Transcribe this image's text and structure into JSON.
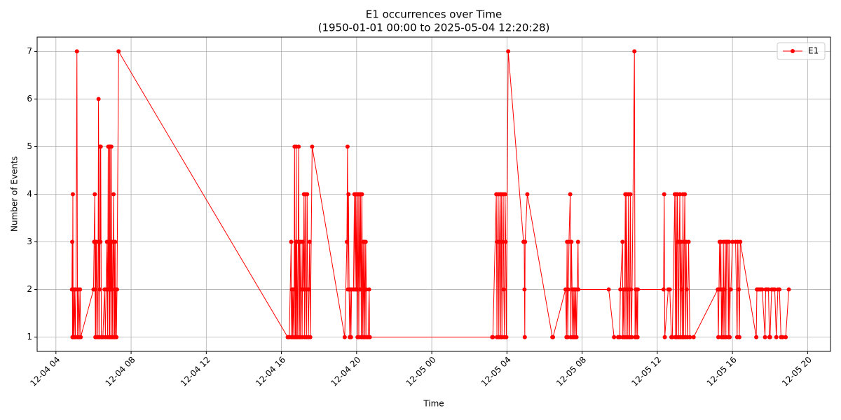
{
  "chart_data": {
    "type": "line",
    "title": "E1 occurrences over Time",
    "subtitle": "(1950-01-01 00:00 to 2025-05-04 12:20:28)",
    "x_label": "Time",
    "y_label": "Number of Events",
    "x": [
      "12-04 04:51",
      "12-04 04:52",
      "12-04 04:53",
      "12-04 04:54",
      "12-04 04:55",
      "12-04 04:56",
      "12-04 04:58",
      "12-04 05:00",
      "12-04 05:02",
      "12-04 05:04",
      "12-04 05:07",
      "12-04 05:09",
      "12-04 05:12",
      "12-04 05:14",
      "12-04 05:17",
      "12-04 05:19",
      "12-04 06:00",
      "12-04 06:02",
      "12-04 06:04",
      "12-04 06:05",
      "12-04 06:06",
      "12-04 06:07",
      "12-04 06:08",
      "12-04 06:09",
      "12-04 06:14",
      "12-04 06:16",
      "12-04 06:17",
      "12-04 06:18",
      "12-04 06:19",
      "12-04 06:20",
      "12-04 06:21",
      "12-04 06:22",
      "12-04 06:23",
      "12-04 06:25",
      "12-04 06:30",
      "12-04 06:35",
      "12-04 06:38",
      "12-04 06:40",
      "12-04 06:43",
      "12-04 06:45",
      "12-04 06:47",
      "12-04 06:48",
      "12-04 06:49",
      "12-04 06:50",
      "12-04 06:51",
      "12-04 06:52",
      "12-04 06:53",
      "12-04 06:54",
      "12-04 06:55",
      "12-04 06:56",
      "12-04 06:57",
      "12-04 06:58",
      "12-04 06:59",
      "12-04 07:00",
      "12-04 07:04",
      "12-04 07:05",
      "12-04 07:06",
      "12-04 07:07",
      "12-04 07:08",
      "12-04 07:09",
      "12-04 07:10",
      "12-04 07:12",
      "12-04 07:13",
      "12-04 07:15",
      "12-04 07:20",
      "12-04 16:20",
      "12-04 16:22",
      "12-04 16:25",
      "12-04 16:31",
      "12-04 16:32",
      "12-04 16:34",
      "12-04 16:36",
      "12-04 16:37",
      "12-04 16:40",
      "12-04 16:42",
      "12-04 16:43",
      "12-04 16:44",
      "12-04 16:45",
      "12-04 16:46",
      "12-04 16:47",
      "12-04 16:48",
      "12-04 16:49",
      "12-04 16:52",
      "12-04 16:55",
      "12-04 16:57",
      "12-04 16:58",
      "12-04 17:00",
      "12-04 17:02",
      "12-04 17:04",
      "12-04 17:06",
      "12-04 17:08",
      "12-04 17:10",
      "12-04 17:12",
      "12-04 17:14",
      "12-04 17:16",
      "12-04 17:18",
      "12-04 17:20",
      "12-04 17:22",
      "12-04 17:24",
      "12-04 17:26",
      "12-04 17:28",
      "12-04 17:30",
      "12-04 17:32",
      "12-04 17:38",
      "12-04 19:22",
      "12-04 19:29",
      "12-04 19:31",
      "12-04 19:32",
      "12-04 19:34",
      "12-04 19:36",
      "12-04 19:38",
      "12-04 19:40",
      "12-04 19:42",
      "12-04 19:44",
      "12-04 19:50",
      "12-04 19:53",
      "12-04 19:55",
      "12-04 19:57",
      "12-04 19:59",
      "12-04 20:01",
      "12-04 20:03",
      "12-04 20:05",
      "12-04 20:07",
      "12-04 20:09",
      "12-04 20:11",
      "12-04 20:13",
      "12-04 20:15",
      "12-04 20:17",
      "12-04 20:19",
      "12-04 20:21",
      "12-04 20:23",
      "12-04 20:25",
      "12-04 20:27",
      "12-04 20:29",
      "12-04 20:31",
      "12-04 20:33",
      "12-04 20:37",
      "12-04 20:40",
      "12-04 20:42",
      "12-05 03:13",
      "12-05 03:15",
      "12-05 03:26",
      "12-05 03:28",
      "12-05 03:30",
      "12-05 03:32",
      "12-05 03:34",
      "12-05 03:36",
      "12-05 03:38",
      "12-05 03:40",
      "12-05 03:42",
      "12-05 03:44",
      "12-05 03:46",
      "12-05 03:48",
      "12-05 03:50",
      "12-05 03:52",
      "12-05 03:54",
      "12-05 03:56",
      "12-05 03:58",
      "12-05 04:04",
      "12-05 04:53",
      "12-05 04:55",
      "12-05 04:56",
      "12-05 04:57",
      "12-05 04:58",
      "12-05 05:05",
      "12-05 06:25",
      "12-05 06:27",
      "12-05 07:07",
      "12-05 07:10",
      "12-05 07:12",
      "12-05 07:14",
      "12-05 07:16",
      "12-05 07:18",
      "12-05 07:22",
      "12-05 07:24",
      "12-05 07:26",
      "12-05 07:28",
      "12-05 07:30",
      "12-05 07:32",
      "12-05 07:34",
      "12-05 07:36",
      "12-05 07:38",
      "12-05 07:40",
      "12-05 07:42",
      "12-05 07:47",
      "12-05 07:48",
      "12-05 09:25",
      "12-05 09:42",
      "12-05 09:55",
      "12-05 10:00",
      "12-05 10:02",
      "12-05 10:09",
      "12-05 10:10",
      "12-05 10:12",
      "12-05 10:14",
      "12-05 10:16",
      "12-05 10:18",
      "12-05 10:20",
      "12-05 10:22",
      "12-05 10:24",
      "12-05 10:26",
      "12-05 10:28",
      "12-05 10:30",
      "12-05 10:32",
      "12-05 10:34",
      "12-05 10:36",
      "12-05 10:38",
      "12-05 10:47",
      "12-05 10:49",
      "12-05 10:51",
      "12-05 10:53",
      "12-05 10:55",
      "12-05 10:57",
      "12-05 10:58",
      "12-05 12:20",
      "12-05 12:22",
      "12-05 12:24",
      "12-05 12:35",
      "12-05 12:40",
      "12-05 12:45",
      "12-05 12:48",
      "12-05 12:56",
      "12-05 12:58",
      "12-05 13:00",
      "12-05 13:02",
      "12-05 13:04",
      "12-05 13:06",
      "12-05 13:08",
      "12-05 13:10",
      "12-05 13:12",
      "12-05 13:14",
      "12-05 13:16",
      "12-05 13:18",
      "12-05 13:20",
      "12-05 13:22",
      "12-05 13:24",
      "12-05 13:26",
      "12-05 13:28",
      "12-05 13:30",
      "12-05 13:32",
      "12-05 13:34",
      "12-05 13:36",
      "12-05 13:40",
      "12-05 13:44",
      "12-05 13:56",
      "12-05 15:13",
      "12-05 15:15",
      "12-05 15:17",
      "12-05 15:19",
      "12-05 15:21",
      "12-05 15:23",
      "12-05 15:25",
      "12-05 15:27",
      "12-05 15:29",
      "12-05 15:31",
      "12-05 15:33",
      "12-05 15:35",
      "12-05 15:37",
      "12-05 15:39",
      "12-05 15:41",
      "12-05 15:43",
      "12-05 15:45",
      "12-05 15:47",
      "12-05 15:49",
      "12-05 15:51",
      "12-05 15:53",
      "12-05 15:55",
      "12-05 16:00",
      "12-05 16:10",
      "12-05 16:15",
      "12-05 16:17",
      "12-05 16:20",
      "12-05 16:22",
      "12-05 16:25",
      "12-05 17:16",
      "12-05 17:18",
      "12-05 17:20",
      "12-05 17:25",
      "12-05 17:30",
      "12-05 17:35",
      "12-05 17:44",
      "12-05 17:46",
      "12-05 17:50",
      "12-05 17:55",
      "12-05 17:58",
      "12-05 18:00",
      "12-05 18:05",
      "12-05 18:10",
      "12-05 18:15",
      "12-05 18:20",
      "12-05 18:25",
      "12-05 18:30",
      "12-05 18:35",
      "12-05 18:40",
      "12-05 18:50",
      "12-05 19:00"
    ],
    "series": [
      {
        "name": "E1",
        "color": "#ff0000",
        "values": [
          2,
          3,
          1,
          4,
          1,
          2,
          1,
          2,
          1,
          2,
          7,
          1,
          2,
          1,
          2,
          1,
          2,
          3,
          4,
          2,
          1,
          3,
          1,
          3,
          1,
          6,
          3,
          1,
          3,
          2,
          5,
          3,
          5,
          1,
          1,
          2,
          1,
          2,
          3,
          1,
          5,
          2,
          3,
          1,
          5,
          1,
          5,
          2,
          3,
          1,
          5,
          2,
          3,
          1,
          4,
          1,
          3,
          1,
          2,
          3,
          1,
          2,
          1,
          2,
          7,
          1,
          1,
          1,
          3,
          1,
          2,
          1,
          2,
          1,
          5,
          2,
          1,
          3,
          1,
          5,
          1,
          3,
          1,
          5,
          1,
          3,
          1,
          3,
          2,
          1,
          3,
          2,
          4,
          1,
          4,
          2,
          1,
          4,
          2,
          1,
          2,
          3,
          1,
          5,
          1,
          3,
          5,
          2,
          4,
          2,
          1,
          2,
          1,
          2,
          2,
          4,
          2,
          4,
          2,
          4,
          1,
          4,
          1,
          4,
          2,
          4,
          1,
          4,
          1,
          3,
          1,
          3,
          1,
          3,
          2,
          1,
          1,
          2,
          1,
          1,
          1,
          4,
          1,
          3,
          4,
          1,
          3,
          4,
          1,
          4,
          1,
          3,
          4,
          2,
          1,
          4,
          3,
          1,
          7,
          3,
          3,
          2,
          1,
          3,
          4,
          1,
          1,
          2,
          1,
          3,
          1,
          2,
          3,
          4,
          1,
          3,
          2,
          1,
          2,
          1,
          2,
          1,
          2,
          1,
          3,
          2,
          2,
          1,
          1,
          1,
          2,
          3,
          1,
          2,
          1,
          2,
          4,
          1,
          4,
          2,
          1,
          4,
          2,
          1,
          4,
          2,
          1,
          7,
          1,
          2,
          1,
          2,
          1,
          2,
          2,
          4,
          1,
          2,
          2,
          1,
          1,
          4,
          1,
          4,
          1,
          4,
          3,
          1,
          3,
          4,
          1,
          3,
          2,
          1,
          4,
          1,
          3,
          4,
          1,
          3,
          2,
          1,
          3,
          1,
          1,
          2,
          1,
          2,
          3,
          2,
          3,
          1,
          2,
          1,
          3,
          1,
          2,
          3,
          1,
          3,
          3,
          3,
          1,
          3,
          1,
          2,
          2,
          3,
          3,
          1,
          3,
          2,
          1,
          3,
          1,
          2,
          2,
          2,
          2,
          2,
          1,
          2,
          2,
          2,
          1,
          1,
          2,
          2,
          2,
          1,
          2,
          2,
          1,
          1,
          1,
          2
        ]
      }
    ],
    "xlim": [
      "12-04 03:00",
      "12-05 21:13"
    ],
    "xticks": [
      "12-04 04",
      "12-04 08",
      "12-04 12",
      "12-04 16",
      "12-04 20",
      "12-05 00",
      "12-05 04",
      "12-05 08",
      "12-05 12",
      "12-05 16",
      "12-05 20"
    ],
    "ylim": [
      0.7,
      7.3
    ],
    "yticks": [
      1,
      2,
      3,
      4,
      5,
      6,
      7
    ],
    "grid": true,
    "legend": "upper right"
  }
}
